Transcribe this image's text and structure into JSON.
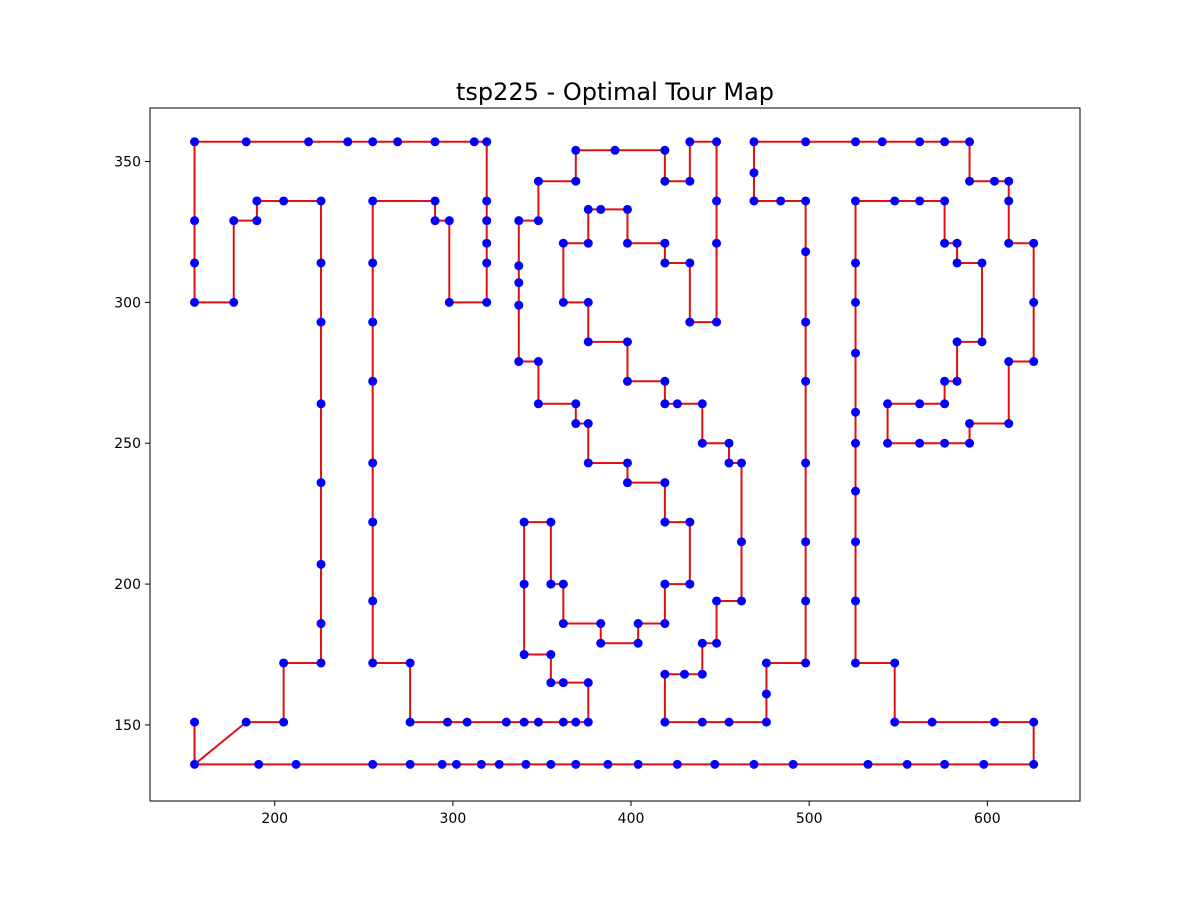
{
  "chart_data": {
    "type": "line",
    "title": "tsp225 - Optimal Tour Map",
    "xlabel": "",
    "ylabel": "",
    "xlim": [
      130,
      652
    ],
    "ylim": [
      123,
      369
    ],
    "x_ticks": [
      200,
      300,
      400,
      500,
      600
    ],
    "y_ticks": [
      150,
      200,
      250,
      300,
      350
    ],
    "grid": false,
    "legend": "none",
    "edge_color": "#e01010",
    "point_color": "#0000ff",
    "series": [
      {
        "values": [
          [
            155,
            136
          ],
          [
            155,
            151
          ],
          [
            155,
            136
          ],
          [
            191,
            136
          ],
          [
            212,
            136
          ],
          [
            255,
            136
          ],
          [
            276,
            136
          ],
          [
            294,
            136
          ],
          [
            302,
            136
          ],
          [
            316,
            136
          ],
          [
            326,
            136
          ],
          [
            341,
            136
          ],
          [
            355,
            136
          ],
          [
            369,
            136
          ],
          [
            387,
            136
          ],
          [
            404,
            136
          ],
          [
            426,
            136
          ],
          [
            447,
            136
          ],
          [
            469,
            136
          ],
          [
            491,
            136
          ],
          [
            533,
            136
          ],
          [
            555,
            136
          ],
          [
            576,
            136
          ],
          [
            598,
            136
          ],
          [
            626,
            136
          ],
          [
            626,
            151
          ],
          [
            604,
            151
          ],
          [
            569,
            151
          ],
          [
            548,
            151
          ],
          [
            548,
            172
          ],
          [
            526,
            172
          ],
          [
            526,
            194
          ],
          [
            526,
            215
          ],
          [
            526,
            233
          ],
          [
            526,
            250
          ],
          [
            526,
            261
          ],
          [
            526,
            282
          ],
          [
            526,
            300
          ],
          [
            526,
            314
          ],
          [
            526,
            336
          ],
          [
            548,
            336
          ],
          [
            562,
            336
          ],
          [
            576,
            336
          ],
          [
            576,
            321
          ],
          [
            583,
            321
          ],
          [
            583,
            314
          ],
          [
            597,
            314
          ],
          [
            597,
            286
          ],
          [
            583,
            286
          ],
          [
            583,
            272
          ],
          [
            576,
            272
          ],
          [
            576,
            264
          ],
          [
            562,
            264
          ],
          [
            544,
            264
          ],
          [
            544,
            250
          ],
          [
            562,
            250
          ],
          [
            576,
            250
          ],
          [
            590,
            250
          ],
          [
            590,
            257
          ],
          [
            612,
            257
          ],
          [
            612,
            279
          ],
          [
            626,
            279
          ],
          [
            626,
            300
          ],
          [
            626,
            321
          ],
          [
            612,
            321
          ],
          [
            612,
            336
          ],
          [
            612,
            343
          ],
          [
            604,
            343
          ],
          [
            590,
            343
          ],
          [
            590,
            357
          ],
          [
            576,
            357
          ],
          [
            562,
            357
          ],
          [
            541,
            357
          ],
          [
            526,
            357
          ],
          [
            498,
            357
          ],
          [
            469,
            357
          ],
          [
            469,
            346
          ],
          [
            469,
            336
          ],
          [
            484,
            336
          ],
          [
            498,
            336
          ],
          [
            498,
            318
          ],
          [
            498,
            293
          ],
          [
            498,
            272
          ],
          [
            498,
            243
          ],
          [
            498,
            215
          ],
          [
            498,
            194
          ],
          [
            498,
            172
          ],
          [
            476,
            172
          ],
          [
            476,
            161
          ],
          [
            476,
            151
          ],
          [
            455,
            151
          ],
          [
            440,
            151
          ],
          [
            419,
            151
          ],
          [
            419,
            168
          ],
          [
            430,
            168
          ],
          [
            440,
            168
          ],
          [
            440,
            179
          ],
          [
            448,
            179
          ],
          [
            448,
            194
          ],
          [
            462,
            194
          ],
          [
            462,
            215
          ],
          [
            462,
            243
          ],
          [
            455,
            243
          ],
          [
            455,
            250
          ],
          [
            440,
            250
          ],
          [
            440,
            264
          ],
          [
            426,
            264
          ],
          [
            419,
            264
          ],
          [
            419,
            272
          ],
          [
            398,
            272
          ],
          [
            398,
            286
          ],
          [
            376,
            286
          ],
          [
            376,
            300
          ],
          [
            362,
            300
          ],
          [
            362,
            321
          ],
          [
            376,
            321
          ],
          [
            376,
            333
          ],
          [
            383,
            333
          ],
          [
            398,
            333
          ],
          [
            398,
            321
          ],
          [
            419,
            321
          ],
          [
            419,
            314
          ],
          [
            433,
            314
          ],
          [
            433,
            293
          ],
          [
            448,
            293
          ],
          [
            448,
            321
          ],
          [
            448,
            336
          ],
          [
            448,
            357
          ],
          [
            433,
            357
          ],
          [
            433,
            343
          ],
          [
            419,
            343
          ],
          [
            419,
            354
          ],
          [
            391,
            354
          ],
          [
            369,
            354
          ],
          [
            369,
            343
          ],
          [
            348,
            343
          ],
          [
            348,
            329
          ],
          [
            337,
            329
          ],
          [
            337,
            313
          ],
          [
            337,
            307
          ],
          [
            337,
            299
          ],
          [
            337,
            279
          ],
          [
            348,
            279
          ],
          [
            348,
            264
          ],
          [
            369,
            264
          ],
          [
            369,
            257
          ],
          [
            376,
            257
          ],
          [
            376,
            243
          ],
          [
            398,
            243
          ],
          [
            398,
            236
          ],
          [
            419,
            236
          ],
          [
            419,
            222
          ],
          [
            433,
            222
          ],
          [
            433,
            200
          ],
          [
            419,
            200
          ],
          [
            419,
            186
          ],
          [
            404,
            186
          ],
          [
            404,
            179
          ],
          [
            383,
            179
          ],
          [
            383,
            186
          ],
          [
            362,
            186
          ],
          [
            362,
            200
          ],
          [
            355,
            200
          ],
          [
            355,
            222
          ],
          [
            340,
            222
          ],
          [
            340,
            200
          ],
          [
            340,
            175
          ],
          [
            355,
            175
          ],
          [
            355,
            165
          ],
          [
            362,
            165
          ],
          [
            376,
            165
          ],
          [
            376,
            151
          ],
          [
            369,
            151
          ],
          [
            362,
            151
          ],
          [
            348,
            151
          ],
          [
            340,
            151
          ],
          [
            330,
            151
          ],
          [
            308,
            151
          ],
          [
            297,
            151
          ],
          [
            276,
            151
          ],
          [
            276,
            172
          ],
          [
            255,
            172
          ],
          [
            255,
            194
          ],
          [
            255,
            222
          ],
          [
            255,
            243
          ],
          [
            255,
            272
          ],
          [
            255,
            293
          ],
          [
            255,
            314
          ],
          [
            255,
            336
          ],
          [
            290,
            336
          ],
          [
            290,
            329
          ],
          [
            298,
            329
          ],
          [
            298,
            300
          ],
          [
            319,
            300
          ],
          [
            319,
            314
          ],
          [
            319,
            321
          ],
          [
            319,
            329
          ],
          [
            319,
            336
          ],
          [
            319,
            357
          ],
          [
            312,
            357
          ],
          [
            290,
            357
          ],
          [
            269,
            357
          ],
          [
            255,
            357
          ],
          [
            241,
            357
          ],
          [
            219,
            357
          ],
          [
            184,
            357
          ],
          [
            155,
            357
          ],
          [
            155,
            329
          ],
          [
            155,
            314
          ],
          [
            155,
            300
          ],
          [
            177,
            300
          ],
          [
            177,
            329
          ],
          [
            190,
            329
          ],
          [
            190,
            336
          ],
          [
            205,
            336
          ],
          [
            226,
            336
          ],
          [
            226,
            314
          ],
          [
            226,
            293
          ],
          [
            226,
            264
          ],
          [
            226,
            236
          ],
          [
            226,
            207
          ],
          [
            226,
            186
          ],
          [
            226,
            172
          ],
          [
            205,
            172
          ],
          [
            205,
            151
          ],
          [
            184,
            151
          ]
        ]
      }
    ]
  }
}
